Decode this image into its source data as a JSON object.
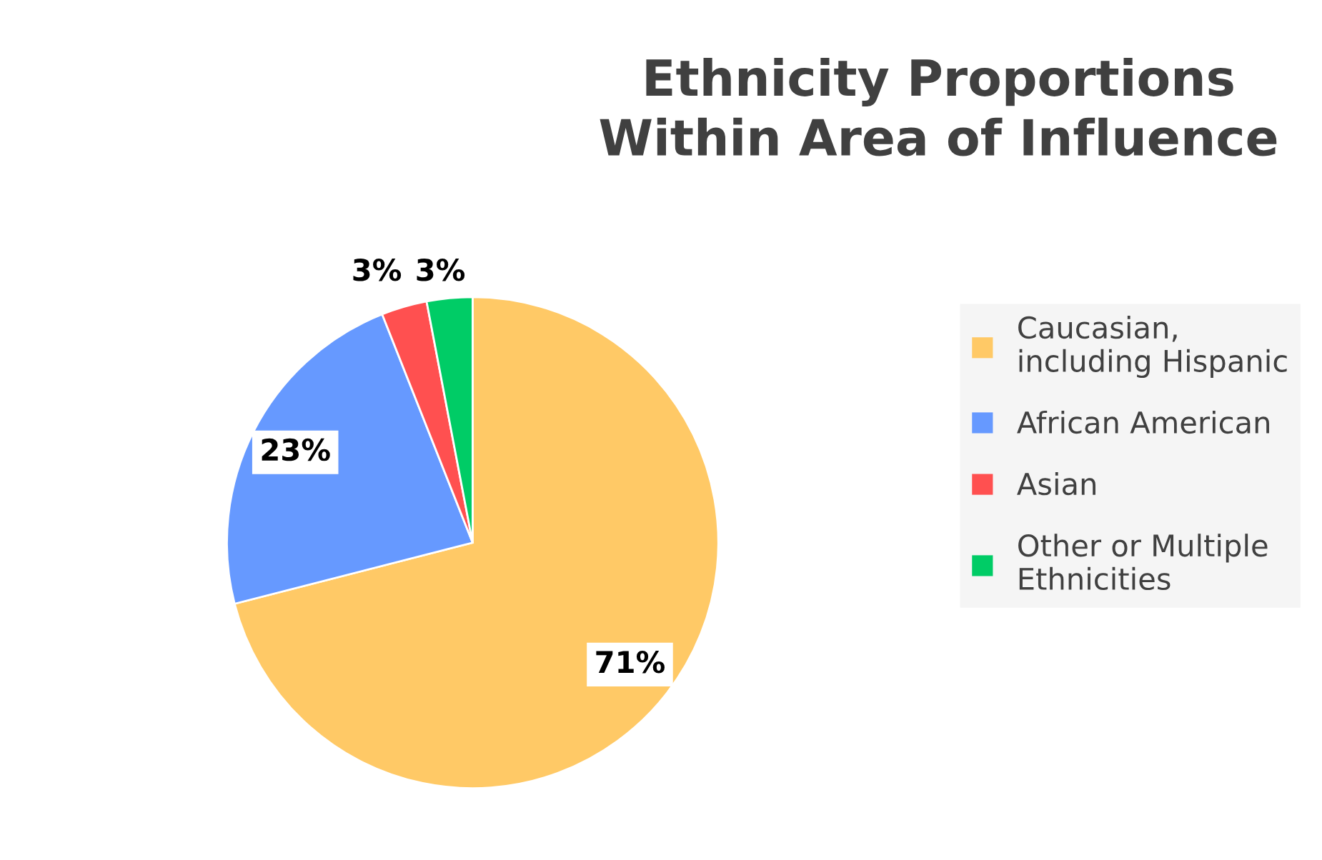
{
  "chart_data": {
    "type": "pie",
    "title": "Ethnicity Proportions\nWithin Area of Influence",
    "categories": [
      "Caucasian,\nincluding Hispanic",
      "African American",
      "Asian",
      "Other or Multiple\nEthnicities"
    ],
    "values": [
      71,
      23,
      3,
      3
    ],
    "colors": [
      "#ffc966",
      "#6699ff",
      "#ff5050",
      "#00cc66"
    ],
    "value_labels": [
      "71%",
      "23%",
      "3%",
      "3%"
    ],
    "legend": "right"
  }
}
